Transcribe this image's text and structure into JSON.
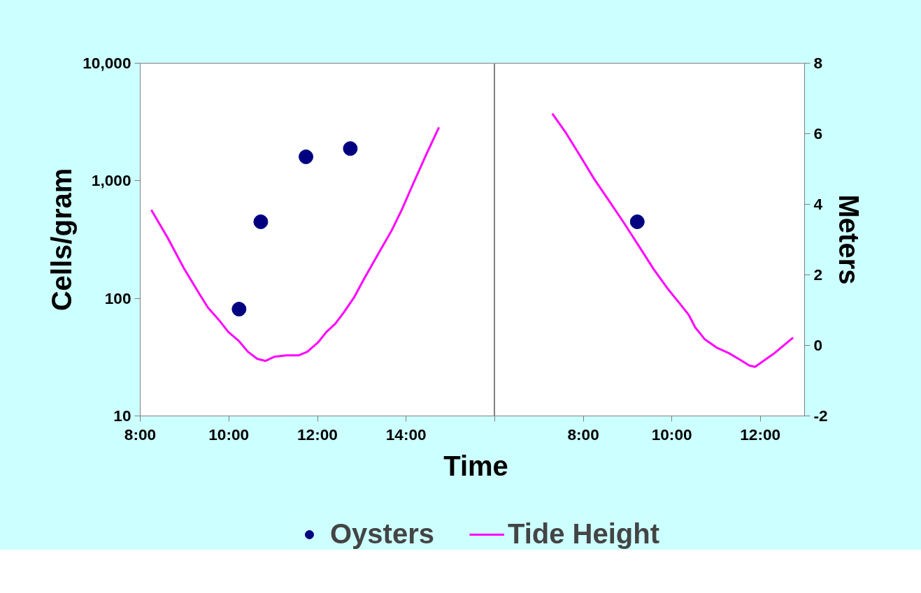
{
  "chart_data": [
    {
      "type": "scatter",
      "xlabel": "Time",
      "ylabel": "Cells/gram",
      "xlim": [
        8,
        16
      ],
      "xticks": [
        {
          "value": 8,
          "label": "8:00"
        },
        {
          "value": 10,
          "label": "10:00"
        },
        {
          "value": 12,
          "label": "12:00"
        },
        {
          "value": 14,
          "label": "14:00"
        }
      ],
      "ylim": [
        10,
        10000
      ],
      "yticks": [
        10,
        100,
        {
          "value": 1000,
          "label": "1,000"
        },
        {
          "value": 10000,
          "label": "10,000"
        }
      ],
      "y2lim": [
        -2,
        8
      ],
      "log": "y",
      "grid": false,
      "legend": "bottom",
      "series": [
        {
          "name": "Oysters",
          "marker": "circle",
          "color": "#000080",
          "x": [
            10.23,
            10.72,
            11.74,
            12.74
          ],
          "values": [
            81,
            448,
            1600,
            1880
          ]
        },
        {
          "name": "Tide Height",
          "type": "line",
          "axis": "y2",
          "marker": "none",
          "line_style": "solid",
          "color": "#ff00ff",
          "x": [
            8.25,
            8.62,
            8.98,
            9.33,
            9.53,
            9.77,
            9.99,
            10.23,
            10.43,
            10.64,
            10.83,
            11.03,
            11.3,
            11.58,
            11.77,
            12.01,
            12.2,
            12.4,
            12.59,
            12.83,
            13.04,
            13.35,
            13.67,
            13.9,
            14.14,
            14.46,
            14.74
          ],
          "values": [
            3.84,
            3.05,
            2.2,
            1.47,
            1.07,
            0.73,
            0.38,
            0.12,
            -0.18,
            -0.38,
            -0.44,
            -0.32,
            -0.28,
            -0.28,
            -0.18,
            0.08,
            0.38,
            0.61,
            0.93,
            1.37,
            1.86,
            2.55,
            3.25,
            3.84,
            4.53,
            5.43,
            6.18
          ]
        }
      ]
    },
    {
      "type": "scatter",
      "y2label": "Meters",
      "xlim": [
        6,
        13
      ],
      "xticks": [
        {
          "value": 6,
          "label": null
        },
        {
          "value": 8,
          "label": "8:00"
        },
        {
          "value": 10,
          "label": "10:00"
        },
        {
          "value": 12,
          "label": "12:00"
        }
      ],
      "ylim": [
        10,
        10000
      ],
      "y2lim": [
        -2,
        8
      ],
      "y2ticks": [
        -2,
        0,
        2,
        4,
        6,
        8
      ],
      "log": "y",
      "grid": false,
      "series": [
        {
          "marker": "circle",
          "color": "#000080",
          "x": [
            9.22
          ],
          "values": [
            448
          ]
        },
        {
          "type": "line",
          "axis": "y2",
          "marker": "none",
          "line_style": "solid",
          "color": "#ff00ff",
          "x": [
            7.3,
            7.61,
            7.93,
            8.24,
            8.56,
            8.91,
            9.27,
            9.59,
            9.9,
            10.19,
            10.38,
            10.53,
            10.74,
            11.01,
            11.29,
            11.56,
            11.75,
            11.88,
            12.06,
            12.32,
            12.74
          ],
          "values": [
            6.57,
            6.02,
            5.37,
            4.73,
            4.14,
            3.49,
            2.79,
            2.16,
            1.62,
            1.17,
            0.87,
            0.51,
            0.18,
            -0.06,
            -0.22,
            -0.42,
            -0.57,
            -0.61,
            -0.45,
            -0.22,
            0.22
          ]
        }
      ]
    }
  ]
}
